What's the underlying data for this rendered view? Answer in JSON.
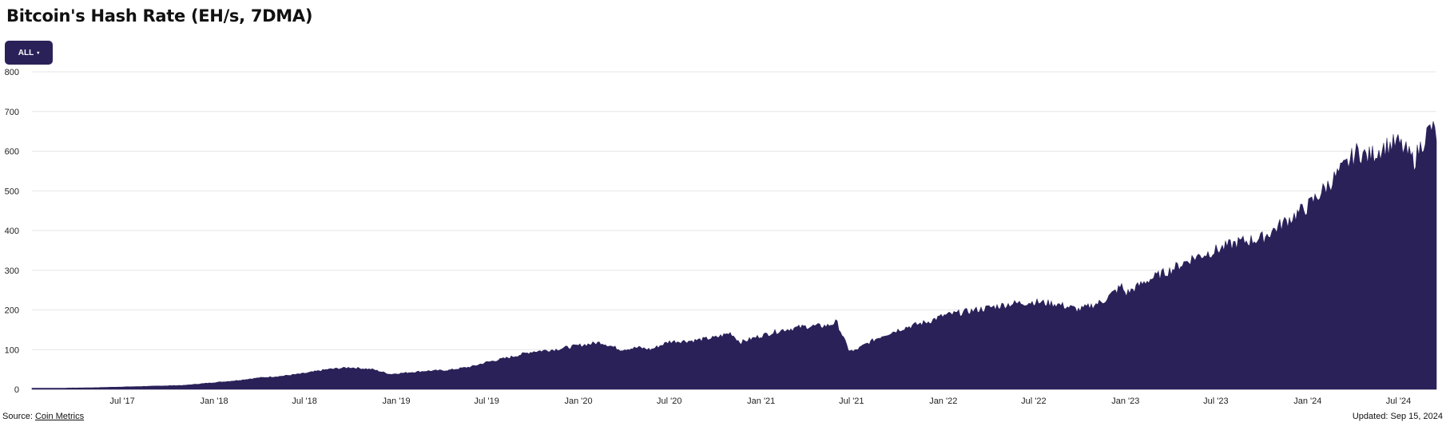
{
  "header": {
    "title": "Bitcoin's Hash Rate (EH/s, 7DMA)"
  },
  "controls": {
    "range_label": "ALL",
    "range_caret": "▾"
  },
  "footer": {
    "source_prefix": "Source: ",
    "source_link": "Coin Metrics",
    "updated": "Updated: Sep 15, 2024"
  },
  "colors": {
    "series": "#2b2159",
    "button": "#2b2159",
    "grid": "#e6e6e6"
  },
  "chart_data": {
    "type": "area",
    "title": "Bitcoin's Hash Rate (EH/s, 7DMA)",
    "xlabel": "",
    "ylabel": "",
    "ylim": [
      0,
      800
    ],
    "yticks": [
      0,
      100,
      200,
      300,
      400,
      500,
      600,
      700,
      800
    ],
    "xlim": [
      "2017-01-01",
      "2024-09-15"
    ],
    "xticks": [
      {
        "date": "2017-07-01",
        "label": "Jul '17"
      },
      {
        "date": "2018-01-01",
        "label": "Jan '18"
      },
      {
        "date": "2018-07-01",
        "label": "Jul '18"
      },
      {
        "date": "2019-01-01",
        "label": "Jan '19"
      },
      {
        "date": "2019-07-01",
        "label": "Jul '19"
      },
      {
        "date": "2020-01-01",
        "label": "Jan '20"
      },
      {
        "date": "2020-07-01",
        "label": "Jul '20"
      },
      {
        "date": "2021-01-01",
        "label": "Jan '21"
      },
      {
        "date": "2021-07-01",
        "label": "Jul '21"
      },
      {
        "date": "2022-01-01",
        "label": "Jan '22"
      },
      {
        "date": "2022-07-01",
        "label": "Jul '22"
      },
      {
        "date": "2023-01-01",
        "label": "Jan '23"
      },
      {
        "date": "2023-07-01",
        "label": "Jul '23"
      },
      {
        "date": "2024-01-01",
        "label": "Jan '24"
      },
      {
        "date": "2024-07-01",
        "label": "Jul '24"
      }
    ],
    "grid": true,
    "legend": "none",
    "series": [
      {
        "x": [
          "2017-01-01",
          "2017-03-01",
          "2017-05-01",
          "2017-07-01",
          "2017-09-01",
          "2017-11-01",
          "2018-01-01",
          "2018-02-15",
          "2018-04-01",
          "2018-05-15",
          "2018-07-01",
          "2018-08-15",
          "2018-10-01",
          "2018-11-15",
          "2018-12-20",
          "2019-01-15",
          "2019-03-01",
          "2019-04-15",
          "2019-06-01",
          "2019-07-01",
          "2019-08-15",
          "2019-10-01",
          "2019-11-15",
          "2020-01-01",
          "2020-02-15",
          "2020-03-25",
          "2020-05-01",
          "2020-05-25",
          "2020-07-01",
          "2020-08-15",
          "2020-10-01",
          "2020-11-01",
          "2020-11-20",
          "2021-01-01",
          "2021-02-15",
          "2021-04-01",
          "2021-05-15",
          "2021-06-01",
          "2021-06-25",
          "2021-07-05",
          "2021-08-01",
          "2021-09-01",
          "2021-10-15",
          "2021-12-01",
          "2022-01-01",
          "2022-02-15",
          "2022-04-01",
          "2022-05-15",
          "2022-07-01",
          "2022-08-15",
          "2022-10-01",
          "2022-11-15",
          "2022-12-25",
          "2023-01-01",
          "2023-02-15",
          "2023-04-01",
          "2023-05-15",
          "2023-07-01",
          "2023-08-15",
          "2023-10-01",
          "2023-11-15",
          "2024-01-01",
          "2024-02-15",
          "2024-03-15",
          "2024-04-10",
          "2024-05-01",
          "2024-06-01",
          "2024-07-01",
          "2024-08-01",
          "2024-08-25",
          "2024-09-05",
          "2024-09-15"
        ],
        "values": [
          3,
          3,
          4,
          6,
          8,
          10,
          17,
          22,
          29,
          33,
          40,
          50,
          55,
          50,
          38,
          41,
          46,
          48,
          57,
          68,
          80,
          95,
          100,
          110,
          118,
          100,
          105,
          100,
          120,
          122,
          130,
          142,
          118,
          135,
          150,
          158,
          160,
          170,
          100,
          95,
          115,
          135,
          155,
          170,
          185,
          195,
          205,
          215,
          220,
          215,
          200,
          220,
          260,
          240,
          275,
          300,
          330,
          350,
          370,
          380,
          420,
          460,
          520,
          560,
          600,
          585,
          610,
          620,
          575,
          640,
          660,
          640
        ]
      }
    ]
  }
}
